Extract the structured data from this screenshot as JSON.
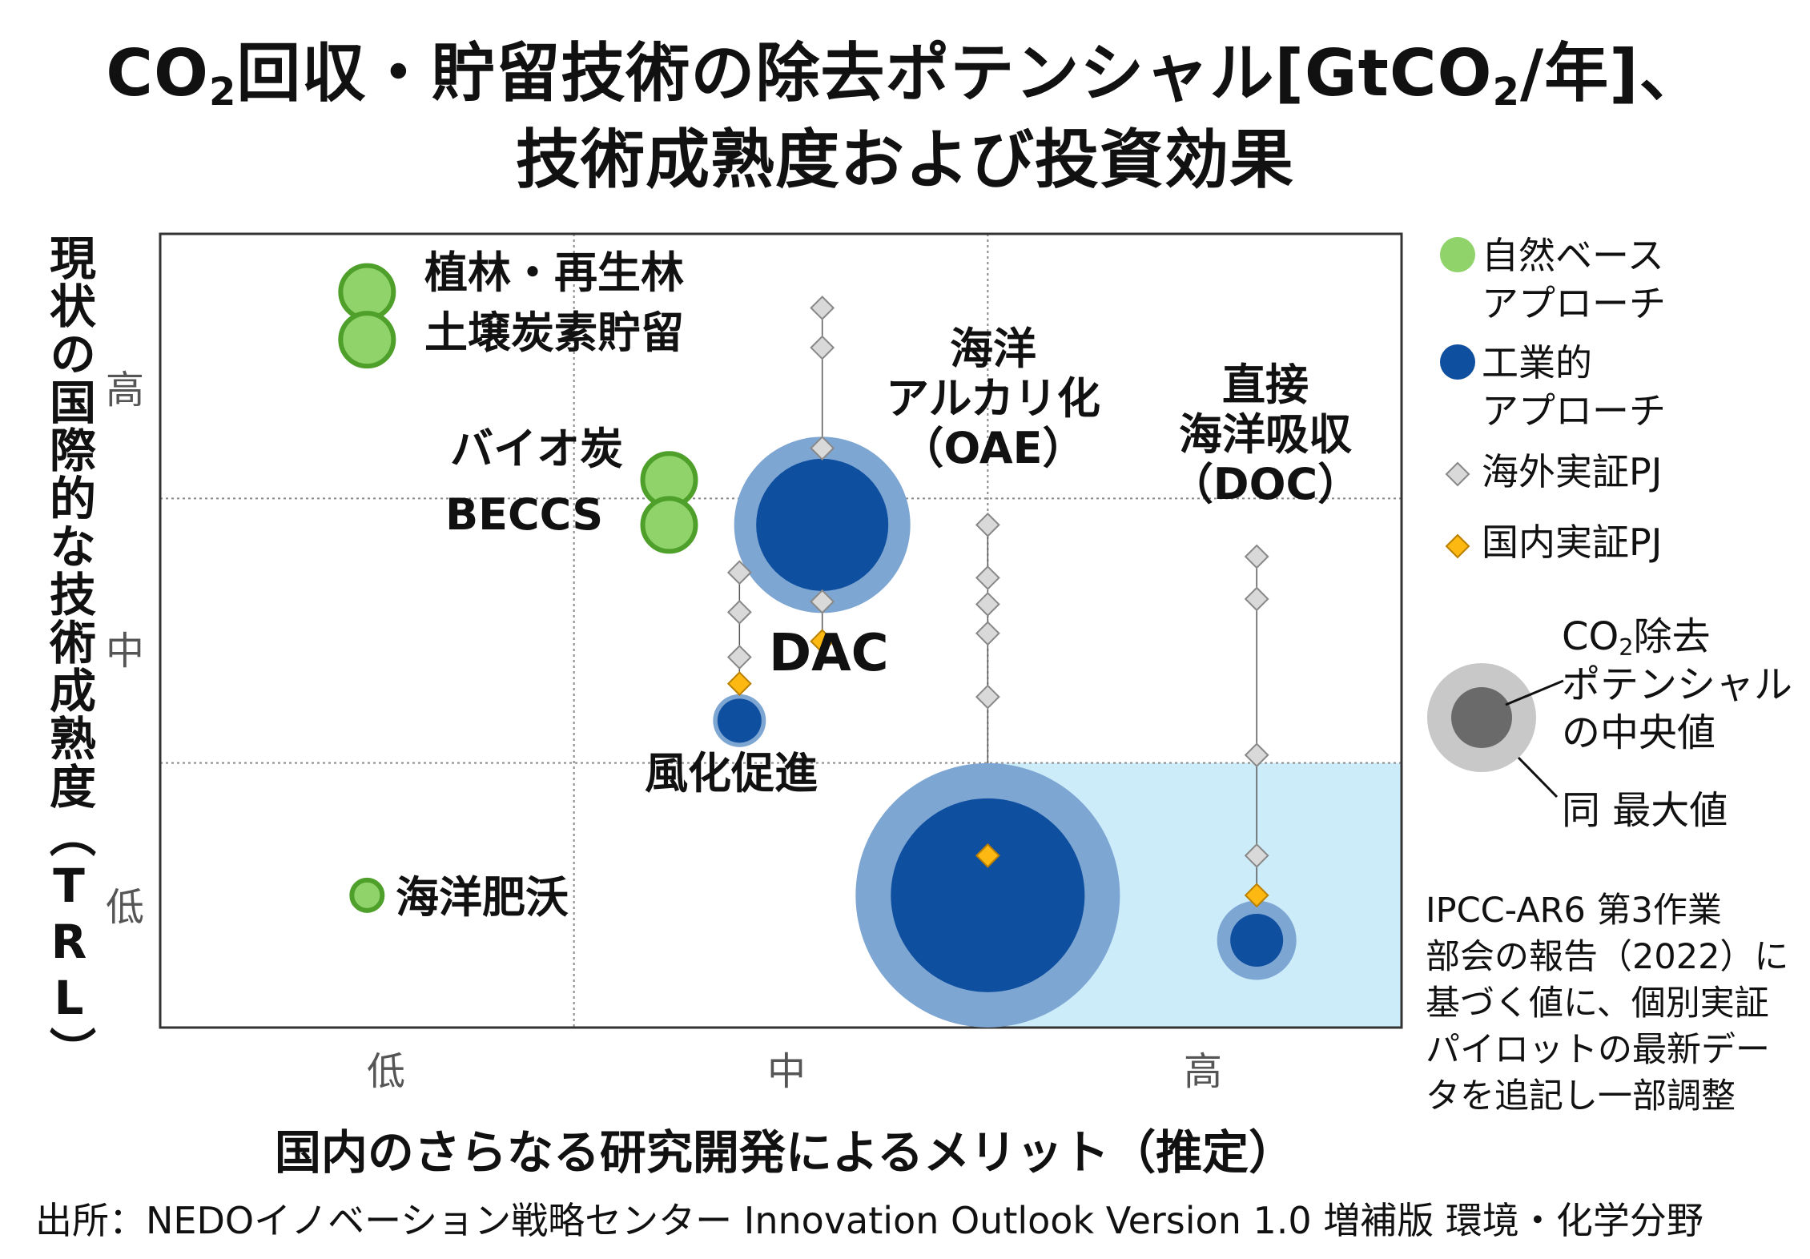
{
  "title": {
    "line1_part1": "CO",
    "line1_sub1": "2",
    "line1_part2": "回収・貯留技術の除去ポテンシャル[GtCO",
    "line1_sub2": "2",
    "line1_part3": "/年]、",
    "line2": "技術成熟度および投資効果"
  },
  "chart_data": {
    "type": "scatter",
    "ylabel": "現状の国際的な技術成熟度（TRL）",
    "xlabel": "国内のさらなる研究開発によるメリット（推定）",
    "x_ticks": [
      "低",
      "中",
      "高"
    ],
    "y_ticks": [
      "高",
      "中",
      "低"
    ],
    "highlight_region": "x: 高, y: 低",
    "colors": {
      "nature": "#8fd36a",
      "nature_edge": "#4ea02a",
      "industrial": "#0e4fa0",
      "industrial_halo": "#7ea6d2",
      "overseas": "#d9d9d9",
      "domestic": "#fdb912",
      "region": "#ccecfa"
    },
    "technologies": [
      {
        "name": "植林・再生林",
        "group": "自然ベース",
        "x": 0.5,
        "y": 2.78
      },
      {
        "name": "土壌炭素貯留",
        "group": "自然ベース",
        "x": 0.5,
        "y": 2.6
      },
      {
        "name": "バイオ炭",
        "group": "自然ベース",
        "x": 1.23,
        "y": 2.07
      },
      {
        "name": "BECCS",
        "group": "自然ベース",
        "x": 1.23,
        "y": 1.9
      },
      {
        "name": "海洋肥沃",
        "group": "自然ベース",
        "x": 0.5,
        "y": 0.5
      },
      {
        "name": "DAC",
        "group": "工業的",
        "x": 1.6,
        "y": 1.9,
        "median": 0.75,
        "max": 1.0,
        "overseas_pj": [
          2.72,
          2.57,
          2.19,
          1.61
        ],
        "domestic_pj": [
          1.46
        ]
      },
      {
        "name": "風化促進",
        "group": "工業的",
        "x": 1.4,
        "y": 1.16,
        "median": 0.25,
        "max": 0.3,
        "overseas_pj": [
          1.72,
          1.57,
          1.4
        ],
        "domestic_pj": [
          1.3
        ]
      },
      {
        "name": "海洋アルカリ化（OAE）",
        "group": "工業的",
        "x": 2.0,
        "y": 0.5,
        "median": 1.1,
        "max": 1.5,
        "overseas_pj": [
          1.9,
          1.7,
          1.6,
          1.49,
          1.25
        ],
        "domestic_pj": [
          0.65
        ]
      },
      {
        "name": "直接海洋吸収（DOC）",
        "group": "工業的",
        "x": 2.65,
        "y": 0.33,
        "median": 0.3,
        "max": 0.45,
        "overseas_pj": [
          1.78,
          1.62,
          1.03,
          0.65
        ],
        "domestic_pj": [
          0.5
        ]
      }
    ]
  },
  "labels": {
    "afforestation": "植林・再生林",
    "soil_carbon": "土壌炭素貯留",
    "biochar": "バイオ炭",
    "beccs": "BECCS",
    "ocean_fert": "海洋肥沃",
    "dac": "DAC",
    "weathering": "風化促進",
    "oae_1": "海洋",
    "oae_2": "アルカリ化",
    "oae_3": "（OAE）",
    "doc_1": "直接",
    "doc_2": "海洋吸収",
    "doc_3": "（DOC）"
  },
  "legend": {
    "nature_1": "自然ベース",
    "nature_2": "アプローチ",
    "industrial_1": "工業的",
    "industrial_2": "アプローチ",
    "overseas": "海外実証PJ",
    "domestic": "国内実証PJ",
    "potential_1a": "CO",
    "potential_1sub": "2",
    "potential_1b": "除去",
    "potential_2": "ポテンシャル",
    "potential_3": "の中央値",
    "max_label": "同 最大値"
  },
  "note": {
    "l1": "IPCC-AR6 第3作業",
    "l2": "部会の報告（2022）に",
    "l3": "基づく値に、個別実証",
    "l4": "パイロットの最新デー",
    "l5": "タを追記し一部調整"
  },
  "source": "出所：NEDOイノベーション戦略センター Innovation Outlook Version 1.0 増補版 環境・化学分野"
}
